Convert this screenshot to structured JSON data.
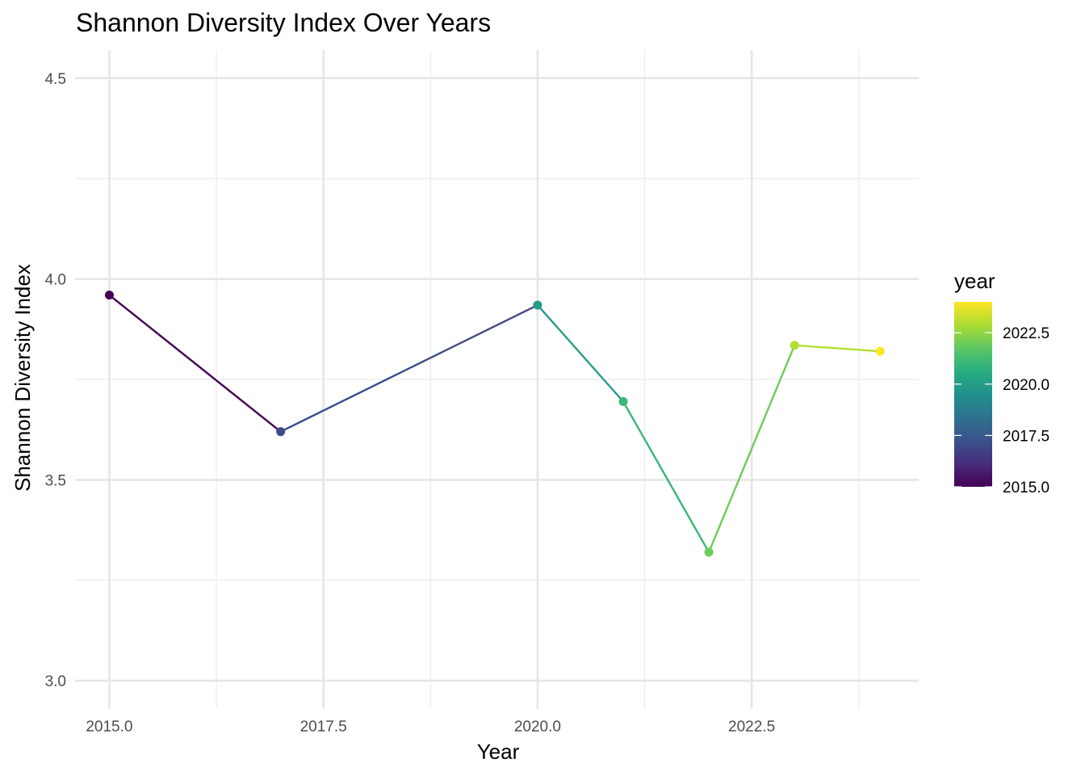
{
  "chart_data": {
    "type": "line",
    "title": "Shannon Diversity Index Over Years",
    "xlabel": "Year",
    "ylabel": "Shannon Diversity Index",
    "xlim": [
      2014.6,
      2024.45
    ],
    "ylim": [
      2.93,
      4.57
    ],
    "x_ticks": [
      2015.0,
      2017.5,
      2020.0,
      2022.5
    ],
    "x_tick_labels": [
      "2015.0",
      "2017.5",
      "2020.0",
      "2022.5"
    ],
    "y_ticks": [
      3.0,
      3.5,
      4.0,
      4.5
    ],
    "y_tick_labels": [
      "3.0",
      "3.5",
      "4.0",
      "4.5"
    ],
    "grid": true,
    "points": [
      {
        "x": 2015,
        "y": 3.96
      },
      {
        "x": 2017,
        "y": 3.62
      },
      {
        "x": 2020,
        "y": 3.935
      },
      {
        "x": 2021,
        "y": 3.695
      },
      {
        "x": 2022,
        "y": 3.32
      },
      {
        "x": 2023,
        "y": 3.835
      },
      {
        "x": 2024,
        "y": 3.82
      }
    ],
    "color_scale": {
      "title": "year",
      "palette": "viridis",
      "range": [
        2015,
        2024
      ],
      "ticks": [
        2015.0,
        2017.5,
        2020.0,
        2022.5
      ],
      "tick_labels": [
        "2015.0",
        "2017.5",
        "2020.0",
        "2022.5"
      ],
      "placement": "right"
    }
  }
}
